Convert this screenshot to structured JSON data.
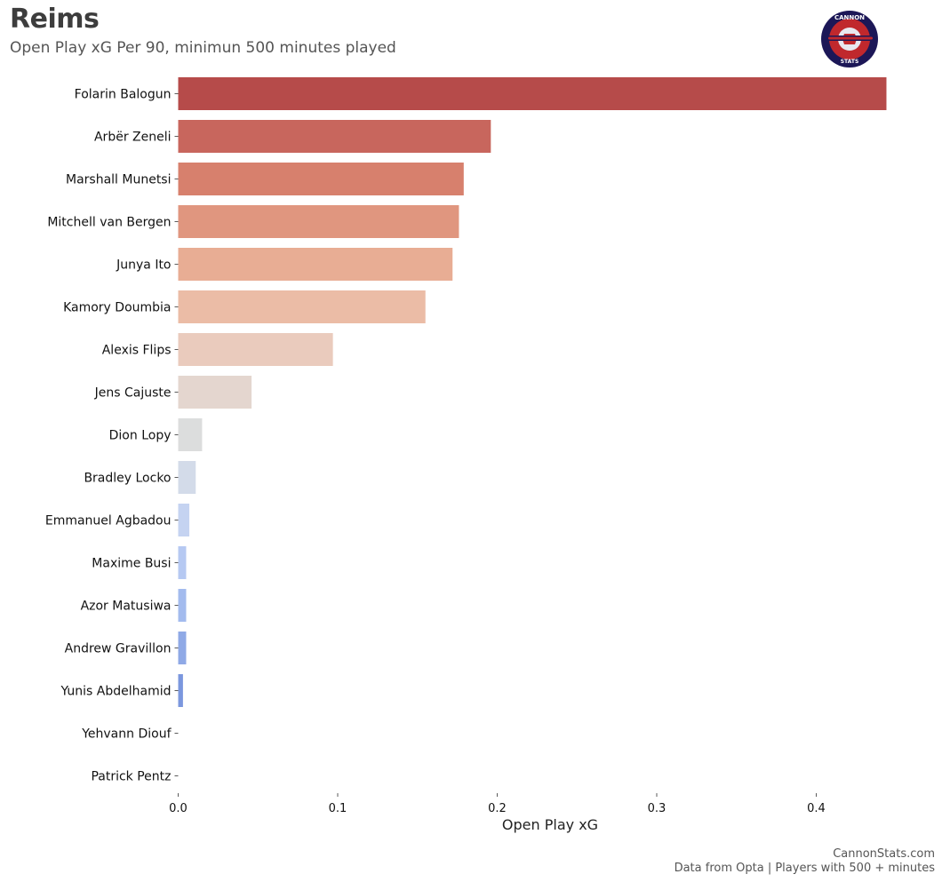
{
  "header": {
    "title": "Reims",
    "subtitle": "Open Play xG Per 90, minimun 500 minutes played"
  },
  "logo": {
    "text_top": "CANNON",
    "text_bottom": "STATS"
  },
  "footer": {
    "site": "CannonStats.com",
    "note": "Data from Opta | Players with 500 + minutes"
  },
  "chart_data": {
    "type": "bar",
    "orientation": "horizontal",
    "title": "Reims",
    "xlabel": "Open Play xG",
    "ylabel": "",
    "xlim": [
      0,
      0.45
    ],
    "xticks": [
      0.0,
      0.1,
      0.2,
      0.3,
      0.4
    ],
    "xtick_labels": [
      "0.0",
      "0.1",
      "0.2",
      "0.3",
      "0.4"
    ],
    "grid": false,
    "colormap": "coolwarm (reversed, high = red)",
    "categories": [
      "Folarin Balogun",
      "Arbër Zeneli",
      "Marshall Munetsi",
      "Mitchell van Bergen",
      "Junya Ito",
      "Kamory Doumbia",
      "Alexis Flips",
      "Jens Cajuste",
      "Dion Lopy",
      "Bradley Locko",
      "Emmanuel Agbadou",
      "Maxime Busi",
      "Azor Matusiwa",
      "Andrew Gravillon",
      "Yunis Abdelhamid",
      "Yehvann Diouf",
      "Patrick Pentz"
    ],
    "values": [
      0.444,
      0.196,
      0.179,
      0.176,
      0.172,
      0.155,
      0.097,
      0.046,
      0.015,
      0.011,
      0.007,
      0.005,
      0.005,
      0.005,
      0.003,
      0.0,
      0.0
    ],
    "colors": [
      "#b64b4a",
      "#c8665d",
      "#d7806d",
      "#e0967f",
      "#e8ad94",
      "#ebbca6",
      "#eacbbd",
      "#e4d6cf",
      "#dcdddd",
      "#d3dbe9",
      "#c5d3f1",
      "#b6c9f2",
      "#a3bbee",
      "#8fa9e6",
      "#7b97de",
      "#6b85d3",
      "#5c73c7"
    ]
  }
}
